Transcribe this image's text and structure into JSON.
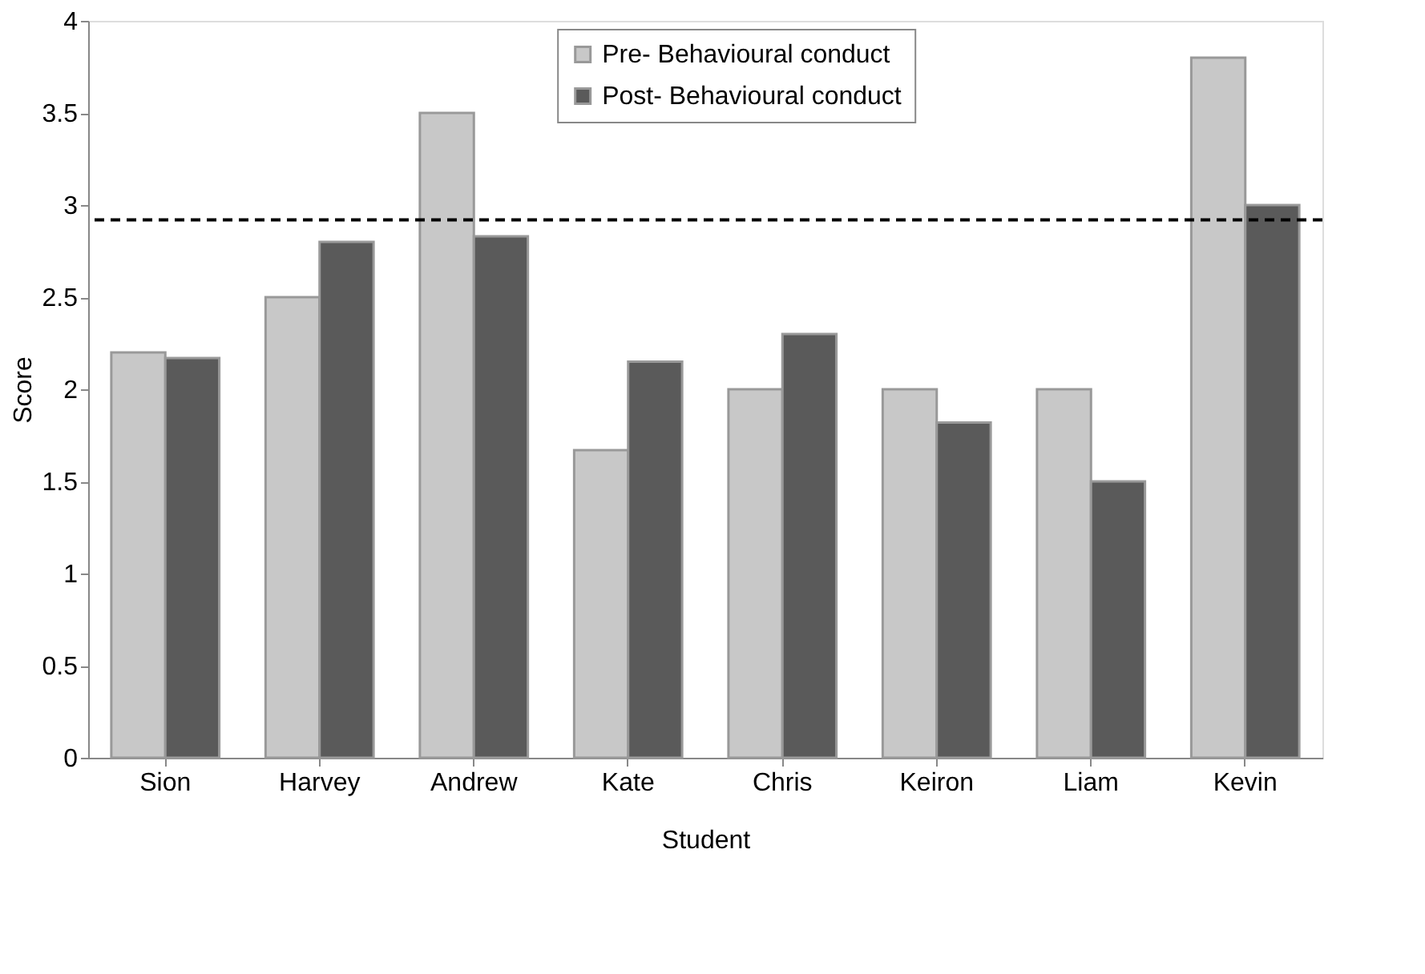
{
  "chart_data": {
    "type": "bar",
    "xlabel": "Student",
    "ylabel": "Score",
    "categories": [
      "Sion",
      "Harvey",
      "Andrew",
      "Kate",
      "Chris",
      "Keiron",
      "Liam",
      "Kevin"
    ],
    "series": [
      {
        "name": "Pre- Behavioural conduct",
        "color": "#c8c8c8",
        "values": [
          2.2,
          2.5,
          3.5,
          1.67,
          2.0,
          2.0,
          2.0,
          3.8
        ]
      },
      {
        "name": "Post- Behavioural conduct",
        "color": "#5a5a5a",
        "values": [
          2.17,
          2.8,
          2.83,
          2.15,
          2.3,
          1.82,
          1.5,
          3.0
        ]
      }
    ],
    "ylim": [
      0,
      4
    ],
    "yticks": [
      0,
      0.5,
      1,
      1.5,
      2,
      2.5,
      3,
      3.5,
      4
    ],
    "ref_lines": [
      {
        "axis": "y",
        "value": 2.92,
        "line_style": "dashed",
        "color": "#000000"
      }
    ],
    "grid": false,
    "legend": "top right"
  }
}
